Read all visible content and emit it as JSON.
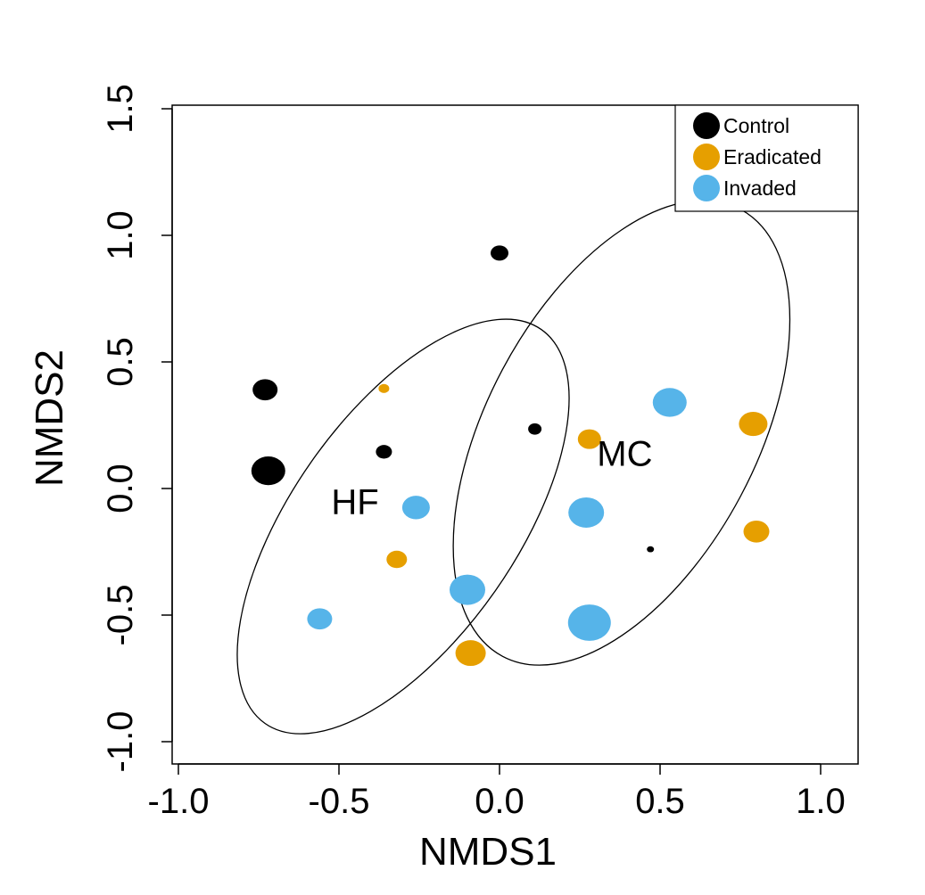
{
  "chart_data": {
    "type": "scatter",
    "title": "",
    "xlabel": "NMDS1",
    "ylabel": "NMDS2",
    "xlim": [
      -1.0,
      1.1
    ],
    "ylim": [
      -1.1,
      1.5
    ],
    "xticks": [
      {
        "value": -1.0,
        "label": "-1.0"
      },
      {
        "value": -0.5,
        "label": "-0.5"
      },
      {
        "value": 0.0,
        "label": "0.0"
      },
      {
        "value": 0.5,
        "label": "0.5"
      },
      {
        "value": 1.0,
        "label": "1.0"
      }
    ],
    "yticks": [
      {
        "value": -1.0,
        "label": "-1.0"
      },
      {
        "value": -0.5,
        "label": "-0.5"
      },
      {
        "value": 0.0,
        "label": "0.0"
      },
      {
        "value": 0.5,
        "label": "0.5"
      },
      {
        "value": 1.0,
        "label": "1.0"
      },
      {
        "value": 1.5,
        "label": "1.5"
      }
    ],
    "grid": false,
    "legend_position": "top-right",
    "series": [
      {
        "name": "Control",
        "color": "#000000",
        "points": [
          {
            "x": 0.0,
            "y": 0.93,
            "size": 1.0
          },
          {
            "x": -0.73,
            "y": 0.39,
            "size": 1.4
          },
          {
            "x": -0.72,
            "y": 0.07,
            "size": 1.9
          },
          {
            "x": -0.36,
            "y": 0.145,
            "size": 0.9
          },
          {
            "x": 0.11,
            "y": 0.235,
            "size": 0.75
          },
          {
            "x": 0.47,
            "y": -0.24,
            "size": 0.4
          }
        ]
      },
      {
        "name": "Eradicated",
        "color": "#E69F00",
        "points": [
          {
            "x": -0.36,
            "y": 0.395,
            "size": 0.6
          },
          {
            "x": 0.28,
            "y": 0.195,
            "size": 1.3
          },
          {
            "x": 0.79,
            "y": 0.255,
            "size": 1.6
          },
          {
            "x": 0.8,
            "y": -0.17,
            "size": 1.45
          },
          {
            "x": -0.32,
            "y": -0.28,
            "size": 1.15
          },
          {
            "x": -0.09,
            "y": -0.65,
            "size": 1.7
          }
        ]
      },
      {
        "name": "Invaded",
        "color": "#56B4E9",
        "points": [
          {
            "x": 0.53,
            "y": 0.34,
            "size": 1.9
          },
          {
            "x": -0.26,
            "y": -0.075,
            "size": 1.55
          },
          {
            "x": 0.27,
            "y": -0.095,
            "size": 2.0
          },
          {
            "x": -0.1,
            "y": -0.4,
            "size": 2.0
          },
          {
            "x": 0.28,
            "y": -0.53,
            "size": 2.4
          },
          {
            "x": -0.56,
            "y": -0.515,
            "size": 1.4
          }
        ]
      }
    ],
    "ellipses": [
      {
        "label": "HF",
        "cx": -0.3,
        "cy": -0.15,
        "rx": 0.35,
        "ry": 0.95,
        "rotation_deg": 55
      },
      {
        "label": "MC",
        "cx": 0.38,
        "cy": 0.22,
        "rx": 0.42,
        "ry": 1.0,
        "rotation_deg": 62
      }
    ],
    "group_labels": [
      {
        "text": "HF",
        "x": -0.45,
        "y": -0.1
      },
      {
        "text": "MC",
        "x": 0.39,
        "y": 0.09
      }
    ]
  }
}
